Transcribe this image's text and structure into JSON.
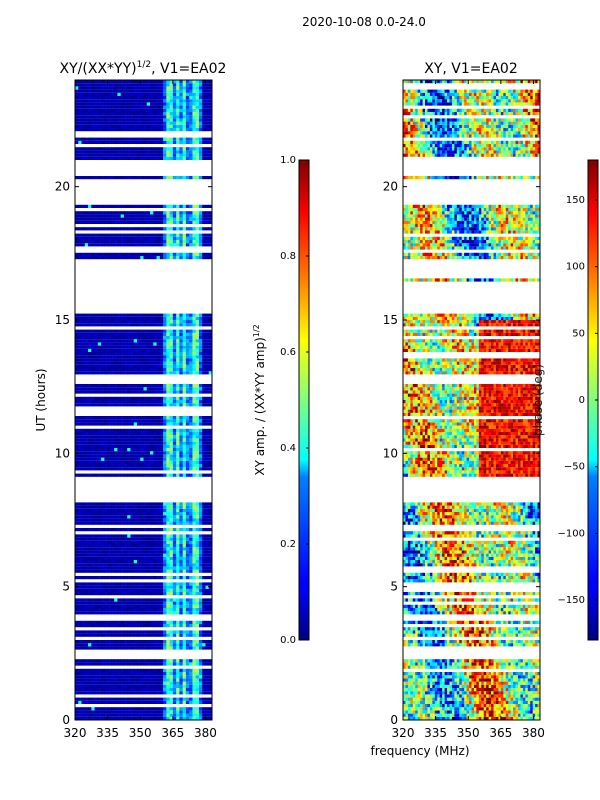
{
  "figure_title": "2020-10-08 0.0-24.0",
  "shared_xlabel": "frequency (MHz)",
  "chart_data": [
    {
      "type": "heatmap",
      "title": "XY/(XX*YY)",
      "title_exponent": "1/2",
      "title_suffix": ", V1=EA02",
      "xlabel": "",
      "ylabel": "UT (hours)",
      "x_range": [
        320,
        383
      ],
      "y_range": [
        0,
        24
      ],
      "xticks": [
        320,
        335,
        350,
        365,
        380
      ],
      "yticks": [
        0,
        5,
        10,
        15,
        20
      ],
      "colormap": "jet",
      "colorbar": {
        "label": "XY amp. / (XX*YY amp)",
        "label_exponent": "1/2",
        "range": [
          0.0,
          1.0
        ],
        "ticks": [
          "0.0",
          "0.2",
          "0.4",
          "0.6",
          "0.8",
          "1.0"
        ]
      },
      "gap_bands_hours": [
        [
          20.45,
          21.0
        ],
        [
          19.35,
          20.3
        ],
        [
          16.6,
          17.3
        ],
        [
          15.25,
          16.4
        ],
        [
          12.6,
          12.95
        ],
        [
          8.2,
          9.1
        ],
        [
          3.75,
          3.95
        ],
        [
          2.3,
          2.7
        ]
      ],
      "bright_channels_mhz": [
        [
          362.5,
          364.5
        ],
        [
          366,
          368
        ],
        [
          370,
          371
        ],
        [
          374,
          377
        ]
      ]
    },
    {
      "type": "heatmap",
      "title": "XY, V1=EA02",
      "xlabel": "frequency (MHz)",
      "ylabel": "",
      "x_range": [
        320,
        383
      ],
      "y_range": [
        0,
        24
      ],
      "xticks": [
        320,
        335,
        350,
        365,
        380
      ],
      "yticks": [
        0,
        5,
        10,
        15,
        20
      ],
      "colormap": "jet",
      "colorbar": {
        "label": "phase (deg)",
        "range": [
          -180,
          180
        ],
        "ticks": [
          "−150",
          "−100",
          "−50",
          "0",
          "50",
          "100",
          "150"
        ]
      },
      "gap_bands_hours": [
        [
          20.45,
          21.0
        ],
        [
          19.35,
          20.3
        ],
        [
          16.6,
          17.3
        ],
        [
          15.25,
          16.4
        ],
        [
          12.6,
          12.95
        ],
        [
          8.2,
          9.1
        ],
        [
          3.75,
          3.95
        ],
        [
          2.3,
          2.7
        ]
      ]
    }
  ]
}
